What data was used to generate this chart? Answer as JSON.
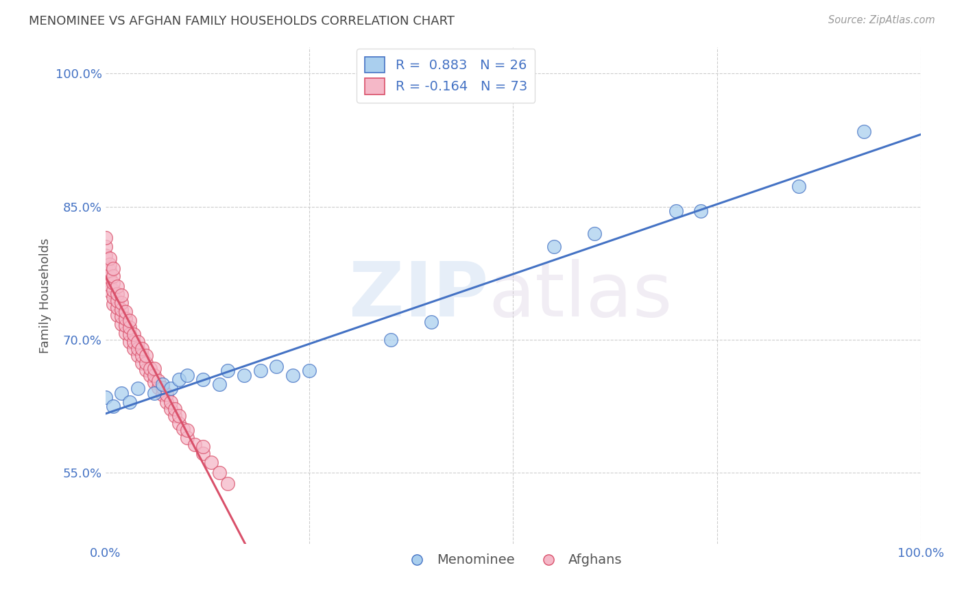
{
  "title": "MENOMINEE VS AFGHAN FAMILY HOUSEHOLDS CORRELATION CHART",
  "source": "Source: ZipAtlas.com",
  "ylabel": "Family Households",
  "xlim": [
    0.0,
    1.0
  ],
  "ylim": [
    0.47,
    1.03
  ],
  "y_ticks": [
    0.55,
    0.7,
    0.85,
    1.0
  ],
  "y_tick_labels": [
    "55.0%",
    "70.0%",
    "85.0%",
    "100.0%"
  ],
  "menominee_color": "#aacfee",
  "afghan_color": "#f5b8c8",
  "menominee_line_color": "#4472c4",
  "afghan_line_color": "#d9506a",
  "diagonal_line_color": "#c8d4e8",
  "menominee_R": 0.883,
  "afghan_R": -0.164,
  "menominee_N": 26,
  "afghan_N": 73,
  "menominee_x": [
    0.0,
    0.01,
    0.02,
    0.03,
    0.04,
    0.06,
    0.07,
    0.08,
    0.09,
    0.1,
    0.12,
    0.14,
    0.15,
    0.17,
    0.19,
    0.21,
    0.23,
    0.25,
    0.35,
    0.4,
    0.55,
    0.6,
    0.7,
    0.73,
    0.85,
    0.93
  ],
  "menominee_y": [
    0.635,
    0.625,
    0.64,
    0.63,
    0.645,
    0.64,
    0.65,
    0.645,
    0.655,
    0.66,
    0.655,
    0.65,
    0.665,
    0.66,
    0.665,
    0.67,
    0.66,
    0.665,
    0.7,
    0.72,
    0.805,
    0.82,
    0.845,
    0.845,
    0.873,
    0.935
  ],
  "afghan_x": [
    0.0,
    0.0,
    0.0,
    0.0,
    0.0,
    0.005,
    0.005,
    0.005,
    0.005,
    0.005,
    0.005,
    0.01,
    0.01,
    0.01,
    0.01,
    0.01,
    0.01,
    0.015,
    0.015,
    0.015,
    0.015,
    0.015,
    0.02,
    0.02,
    0.02,
    0.02,
    0.02,
    0.025,
    0.025,
    0.025,
    0.025,
    0.03,
    0.03,
    0.03,
    0.03,
    0.035,
    0.035,
    0.035,
    0.04,
    0.04,
    0.04,
    0.045,
    0.045,
    0.045,
    0.05,
    0.05,
    0.05,
    0.055,
    0.055,
    0.06,
    0.06,
    0.06,
    0.065,
    0.065,
    0.07,
    0.07,
    0.075,
    0.075,
    0.08,
    0.08,
    0.085,
    0.085,
    0.09,
    0.09,
    0.095,
    0.1,
    0.1,
    0.11,
    0.12,
    0.12,
    0.13,
    0.14,
    0.15
  ],
  "afghan_y": [
    0.77,
    0.78,
    0.795,
    0.805,
    0.815,
    0.755,
    0.762,
    0.77,
    0.778,
    0.785,
    0.792,
    0.74,
    0.748,
    0.756,
    0.764,
    0.772,
    0.78,
    0.728,
    0.736,
    0.744,
    0.752,
    0.76,
    0.718,
    0.726,
    0.734,
    0.742,
    0.75,
    0.708,
    0.716,
    0.724,
    0.732,
    0.698,
    0.706,
    0.714,
    0.722,
    0.69,
    0.698,
    0.706,
    0.682,
    0.69,
    0.698,
    0.674,
    0.682,
    0.69,
    0.666,
    0.674,
    0.682,
    0.66,
    0.668,
    0.652,
    0.66,
    0.668,
    0.646,
    0.654,
    0.638,
    0.646,
    0.63,
    0.638,
    0.622,
    0.63,
    0.614,
    0.622,
    0.606,
    0.614,
    0.6,
    0.59,
    0.598,
    0.582,
    0.572,
    0.58,
    0.562,
    0.55,
    0.538
  ]
}
